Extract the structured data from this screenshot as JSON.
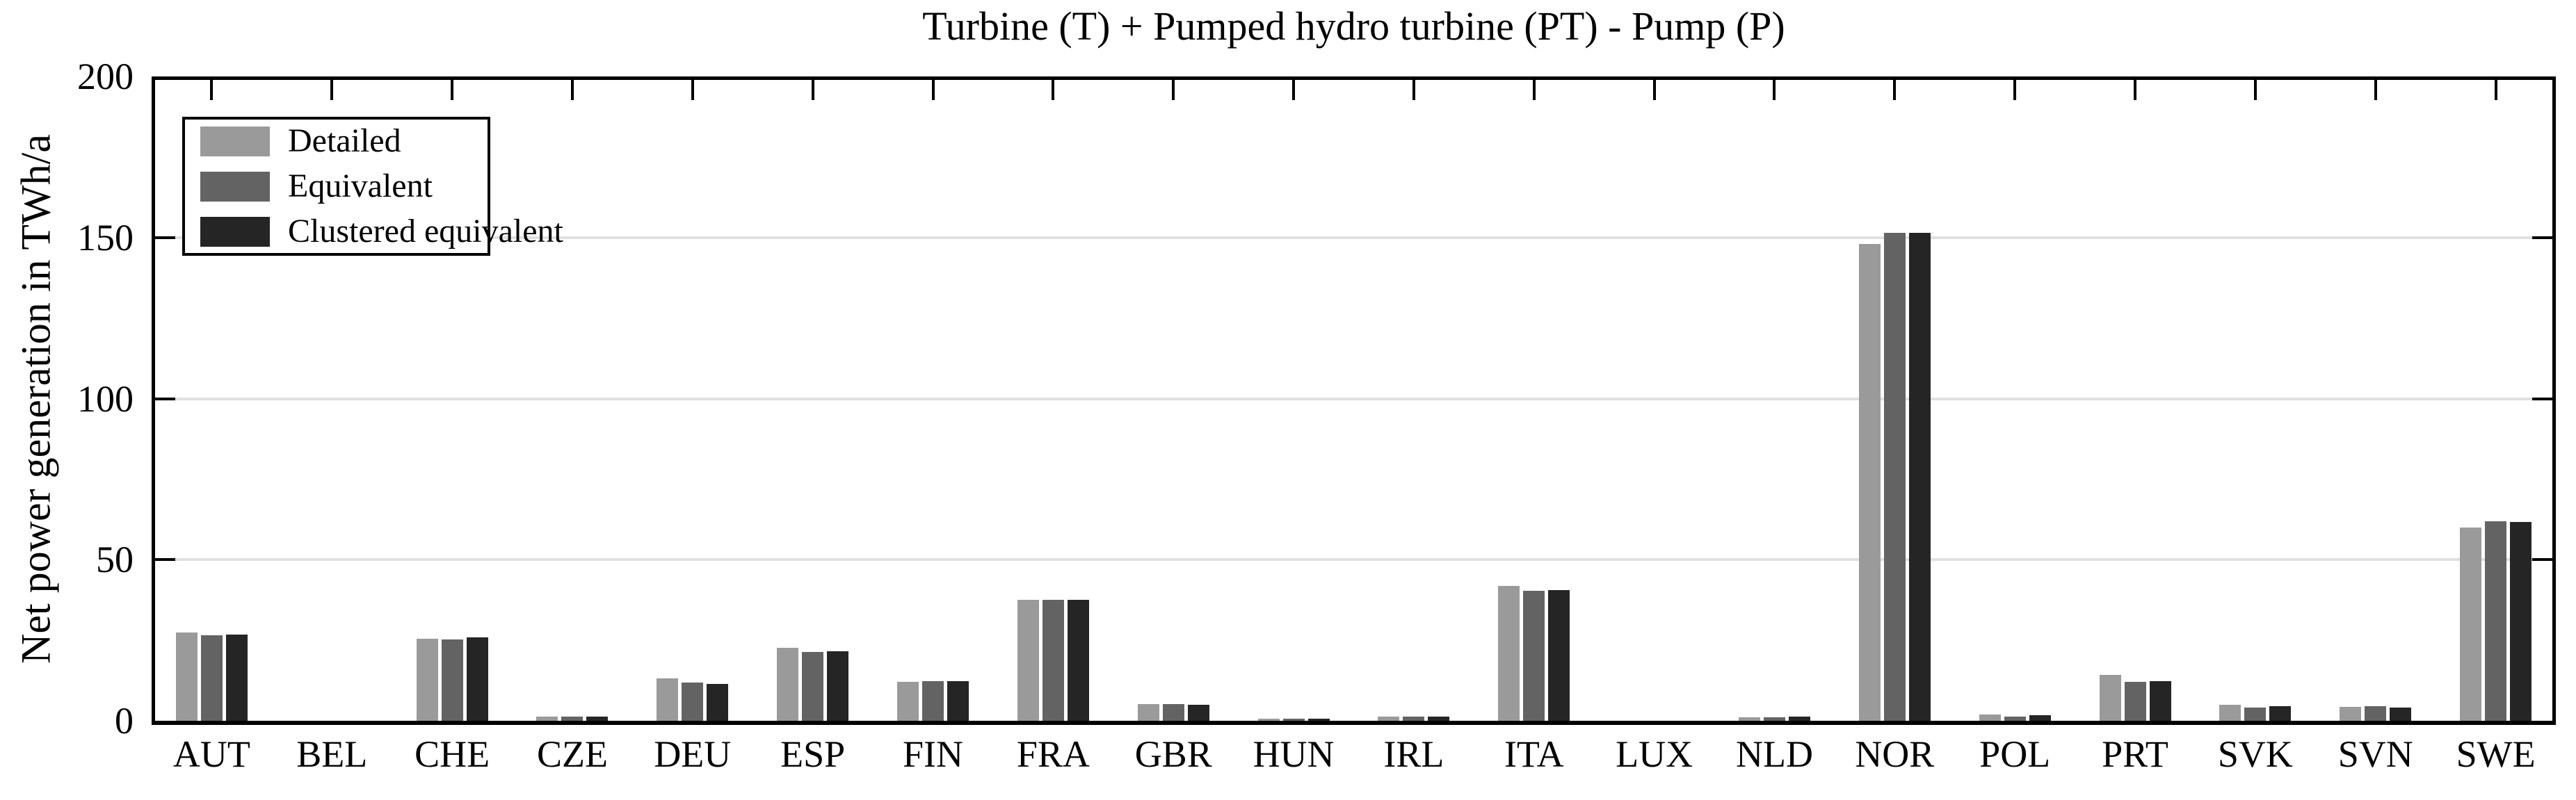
{
  "chart_data": {
    "type": "bar",
    "title": "Turbine (T) + Pumped hydro turbine (PT) - Pump (P)",
    "ylabel": "Net power generation in TWh/a",
    "ylim": [
      0,
      200
    ],
    "yticks": [
      0,
      50,
      100,
      150,
      200
    ],
    "grid": "horizontal",
    "legend_position": "top-left",
    "categories": [
      "AUT",
      "BEL",
      "CHE",
      "CZE",
      "DEU",
      "ESP",
      "FIN",
      "FRA",
      "GBR",
      "HUN",
      "IRL",
      "ITA",
      "LUX",
      "NLD",
      "NOR",
      "POL",
      "PRT",
      "SVK",
      "SVN",
      "SWE"
    ],
    "series": [
      {
        "name": "Detailed",
        "color": "#9a9a9a",
        "values": [
          27.4,
          0,
          25.5,
          1.3,
          13.2,
          22.7,
          12.1,
          37.5,
          5.2,
          0.7,
          1.2,
          41.9,
          0,
          1.0,
          148.0,
          1.9,
          14.2,
          4.9,
          4.4,
          60.0
        ]
      },
      {
        "name": "Equivalent",
        "color": "#636363",
        "values": [
          26.6,
          0,
          25.2,
          1.4,
          11.9,
          21.4,
          12.3,
          37.5,
          5.2,
          0.7,
          1.3,
          40.3,
          0,
          1.0,
          151.4,
          1.3,
          12.1,
          4.2,
          4.5,
          61.9
        ]
      },
      {
        "name": "Clustered equivalent",
        "color": "#252525",
        "values": [
          26.7,
          0,
          25.9,
          1.4,
          11.4,
          21.6,
          12.3,
          37.5,
          5.0,
          0.7,
          1.2,
          40.6,
          0,
          1.2,
          151.5,
          1.7,
          12.3,
          4.5,
          4.2,
          61.7
        ]
      }
    ],
    "colors": {
      "axis": "#000000",
      "grid": "#e0e0e0",
      "background": "#ffffff"
    }
  }
}
